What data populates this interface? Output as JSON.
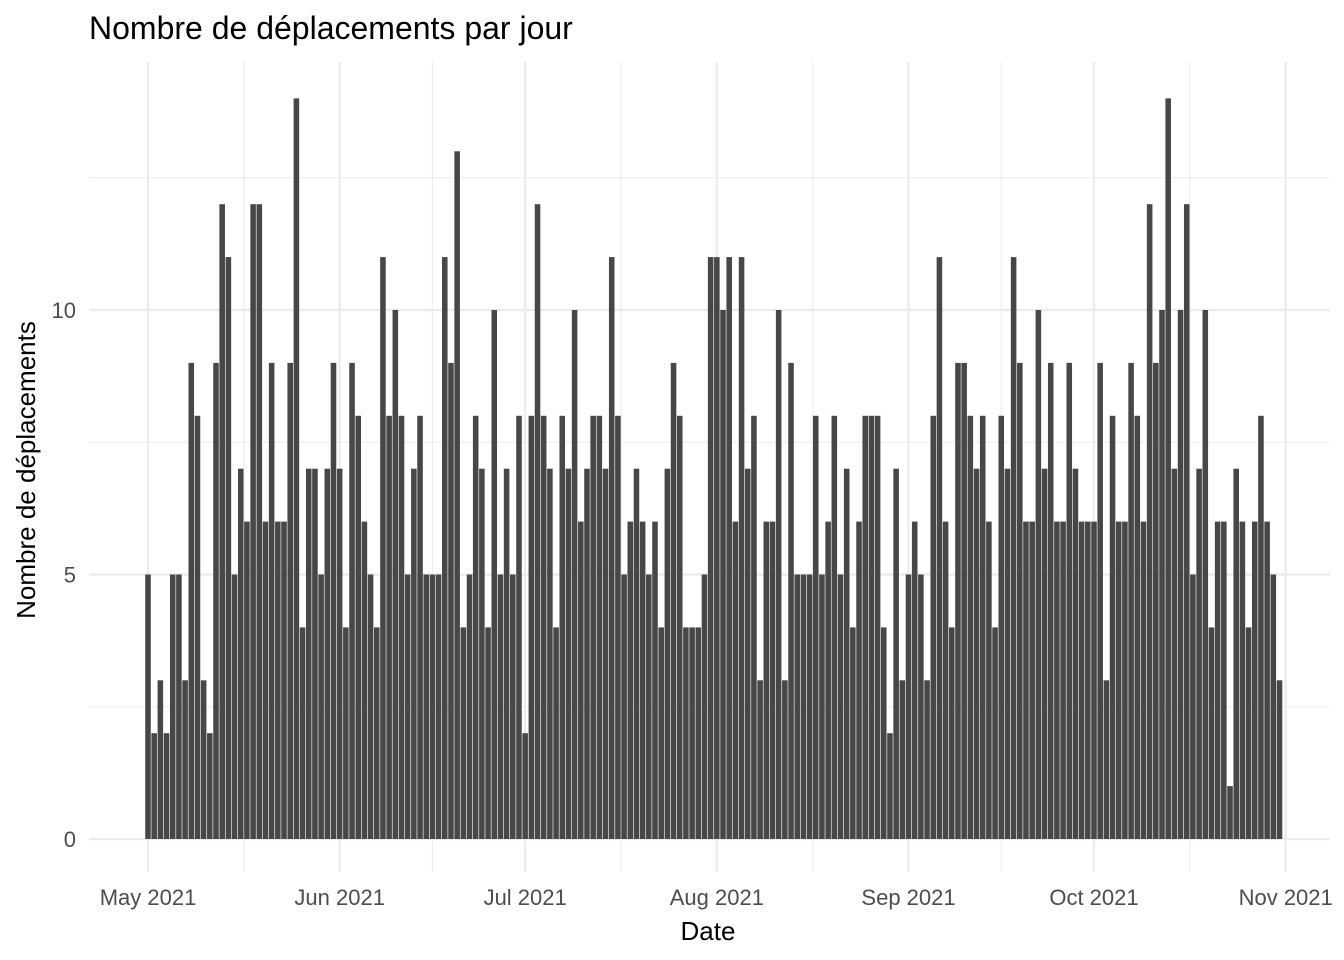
{
  "chart_data": {
    "type": "bar",
    "title": "Nombre de déplacements par jour",
    "xlabel": "Date",
    "ylabel": "Nombre de déplacements",
    "x_start": "2021-05-01",
    "x_ticks": [
      {
        "date": "2021-05-01",
        "label": "May 2021"
      },
      {
        "date": "2021-06-01",
        "label": "Jun 2021"
      },
      {
        "date": "2021-07-01",
        "label": "Jul 2021"
      },
      {
        "date": "2021-08-01",
        "label": "Aug 2021"
      },
      {
        "date": "2021-09-01",
        "label": "Sep 2021"
      },
      {
        "date": "2021-10-01",
        "label": "Oct 2021"
      },
      {
        "date": "2021-11-01",
        "label": "Nov 2021"
      }
    ],
    "y_ticks": [
      0,
      5,
      10
    ],
    "ylim": [
      0,
      14
    ],
    "grid": true,
    "values": [
      5,
      2,
      3,
      2,
      5,
      5,
      3,
      9,
      8,
      3,
      2,
      9,
      12,
      11,
      5,
      7,
      6,
      12,
      12,
      6,
      9,
      6,
      6,
      9,
      14,
      4,
      7,
      7,
      5,
      7,
      9,
      7,
      4,
      9,
      8,
      6,
      5,
      4,
      11,
      8,
      10,
      8,
      5,
      7,
      8,
      5,
      5,
      5,
      11,
      9,
      13,
      4,
      5,
      8,
      7,
      4,
      10,
      5,
      7,
      5,
      8,
      2,
      8,
      12,
      8,
      7,
      4,
      8,
      7,
      10,
      6,
      7,
      8,
      8,
      7,
      11,
      8,
      5,
      6,
      7,
      6,
      5,
      6,
      4,
      7,
      9,
      8,
      4,
      4,
      4,
      5,
      11,
      11,
      10,
      11,
      6,
      11,
      7,
      8,
      3,
      6,
      6,
      10,
      3,
      9,
      5,
      5,
      5,
      8,
      5,
      6,
      8,
      5,
      7,
      4,
      6,
      8,
      8,
      8,
      4,
      2,
      7,
      3,
      5,
      6,
      5,
      3,
      8,
      11,
      6,
      4,
      9,
      9,
      8,
      7,
      8,
      6,
      4,
      8,
      7,
      11,
      9,
      6,
      6,
      10,
      7,
      9,
      6,
      6,
      9,
      7,
      6,
      6,
      6,
      9,
      3,
      8,
      6,
      6,
      9,
      8,
      6,
      12,
      9,
      10,
      14,
      7,
      10,
      12,
      5,
      7,
      10,
      4,
      6,
      6,
      1,
      7,
      6,
      4,
      6,
      8,
      6,
      5,
      3
    ]
  }
}
